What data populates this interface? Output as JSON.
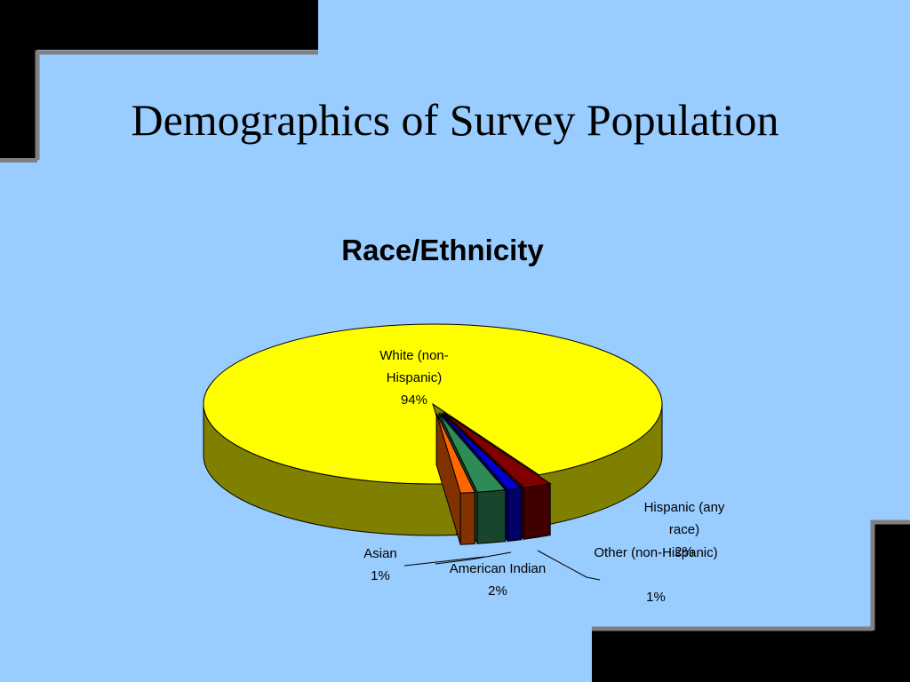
{
  "title": "Demographics of Survey Population",
  "chart_data": {
    "type": "pie",
    "title": "Race/Ethnicity",
    "categories": [
      "White (non-Hispanic)",
      "Hispanic (any race)",
      "Other (non-Hispanic)",
      "American Indian",
      "Asian"
    ],
    "values": [
      94,
      2,
      1,
      2,
      1
    ],
    "value_labels": [
      "94%",
      "2%",
      "1%",
      "2%",
      "1%"
    ],
    "colors": [
      "#ffff00",
      "#800000",
      "#0000cc",
      "#2e8b57",
      "#ff6600"
    ],
    "three_d": true,
    "exploded": [
      false,
      true,
      true,
      true,
      true
    ]
  }
}
